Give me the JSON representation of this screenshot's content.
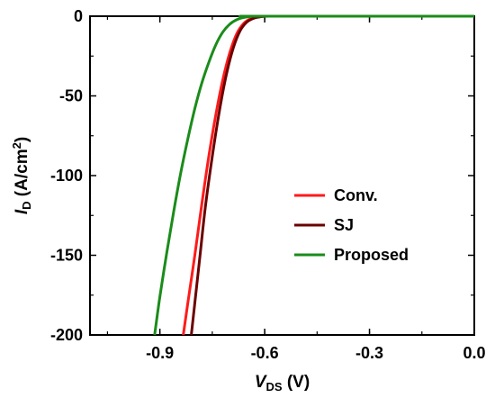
{
  "chart_data": {
    "type": "line",
    "xlabel": {
      "main": "V",
      "sub": "DS",
      "unit": " (V)"
    },
    "ylabel": {
      "main": "I",
      "sub": "D",
      "unit": " (A/cm",
      "sup": "2",
      "close": ")"
    },
    "xlim": [
      -1.1,
      0.0
    ],
    "ylim": [
      -200,
      0
    ],
    "x_ticks": [
      {
        "value": -0.9,
        "label": "-0.9"
      },
      {
        "value": -0.6,
        "label": "-0.6"
      },
      {
        "value": -0.3,
        "label": "-0.3"
      },
      {
        "value": 0.0,
        "label": "0.0"
      }
    ],
    "y_ticks": [
      {
        "value": 0,
        "label": "0"
      },
      {
        "value": -50,
        "label": "-50"
      },
      {
        "value": -100,
        "label": "-100"
      },
      {
        "value": -150,
        "label": "-150"
      },
      {
        "value": -200,
        "label": "-200"
      }
    ],
    "legend_position": "center-right",
    "grid": false,
    "series": [
      {
        "name": "Conv.",
        "color": "#ff1a1a",
        "points": [
          [
            -0.833,
            -200
          ],
          [
            -0.82,
            -180
          ],
          [
            -0.8,
            -150
          ],
          [
            -0.78,
            -118
          ],
          [
            -0.76,
            -88
          ],
          [
            -0.74,
            -62
          ],
          [
            -0.72,
            -40
          ],
          [
            -0.7,
            -23
          ],
          [
            -0.68,
            -11
          ],
          [
            -0.66,
            -4.5
          ],
          [
            -0.64,
            -1.6
          ],
          [
            -0.62,
            -0.5
          ],
          [
            -0.6,
            -0.1
          ],
          [
            -0.55,
            0
          ],
          [
            0.0,
            0
          ]
        ]
      },
      {
        "name": "SJ",
        "color": "#6b0000",
        "points": [
          [
            -0.81,
            -200
          ],
          [
            -0.8,
            -180
          ],
          [
            -0.785,
            -150
          ],
          [
            -0.77,
            -120
          ],
          [
            -0.75,
            -88
          ],
          [
            -0.73,
            -60
          ],
          [
            -0.71,
            -37
          ],
          [
            -0.69,
            -20
          ],
          [
            -0.67,
            -9
          ],
          [
            -0.65,
            -3.5
          ],
          [
            -0.63,
            -1.2
          ],
          [
            -0.61,
            -0.3
          ],
          [
            -0.59,
            0
          ],
          [
            -0.55,
            0
          ],
          [
            0.0,
            0
          ]
        ]
      },
      {
        "name": "Proposed",
        "color": "#1a8c1a",
        "points": [
          [
            -0.915,
            -200
          ],
          [
            -0.9,
            -176
          ],
          [
            -0.88,
            -148
          ],
          [
            -0.86,
            -122
          ],
          [
            -0.84,
            -98
          ],
          [
            -0.82,
            -77
          ],
          [
            -0.8,
            -58
          ],
          [
            -0.78,
            -42
          ],
          [
            -0.76,
            -29
          ],
          [
            -0.74,
            -18
          ],
          [
            -0.72,
            -10
          ],
          [
            -0.7,
            -5
          ],
          [
            -0.68,
            -2.2
          ],
          [
            -0.66,
            -0.8
          ],
          [
            -0.64,
            -0.2
          ],
          [
            -0.62,
            0
          ],
          [
            0.0,
            0
          ]
        ]
      }
    ]
  }
}
